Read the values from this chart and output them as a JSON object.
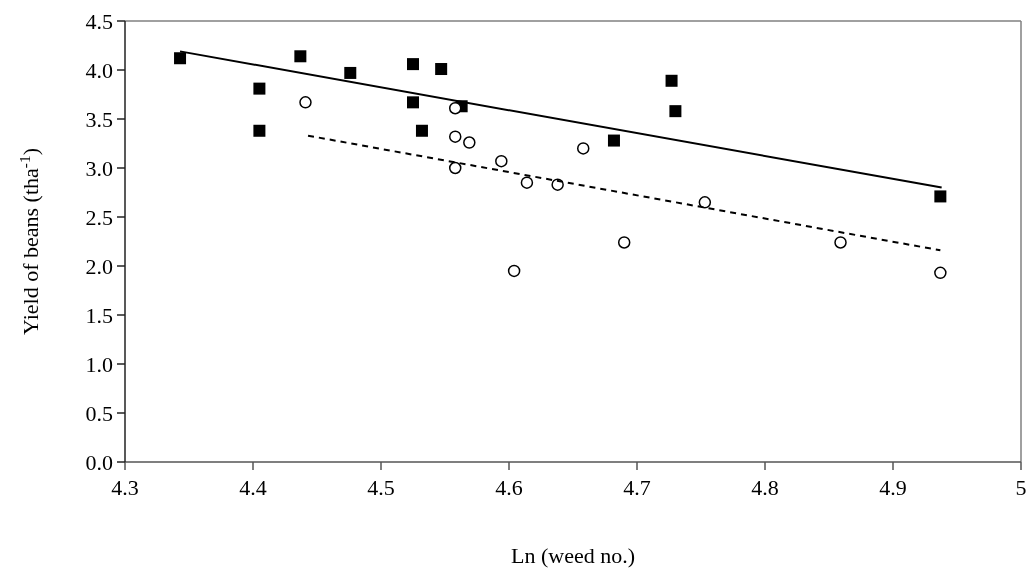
{
  "chart_data": {
    "type": "scatter",
    "xlabel": "Ln (weed no.)",
    "ylabel": "Yield of beans (tha$^{-1}$)",
    "xlim": [
      4.3,
      5
    ],
    "xticks": [
      4.3,
      4.4,
      4.5,
      4.6,
      4.7,
      4.8,
      4.9,
      5
    ],
    "ylim": [
      0,
      4.5
    ],
    "yticks": [
      {
        "value": 0,
        "label": "0.0"
      },
      0.5,
      {
        "value": 1,
        "label": "1.0"
      },
      1.5,
      {
        "value": 2,
        "label": "2.0"
      },
      2.5,
      {
        "value": 3,
        "label": "3.0"
      },
      3.5,
      {
        "value": 4,
        "label": "4.0"
      },
      4.5
    ],
    "grid": false,
    "series": [
      {
        "marker": "square",
        "color": "#000000",
        "x": [
          4.343,
          4.405,
          4.405,
          4.437,
          4.476,
          4.525,
          4.525,
          4.547,
          4.532,
          4.563,
          4.682,
          4.727,
          4.73,
          4.937
        ],
        "values": [
          4.12,
          3.81,
          3.38,
          4.14,
          3.97,
          4.06,
          3.67,
          4.01,
          3.38,
          3.63,
          3.28,
          3.89,
          3.58,
          2.71
        ]
      },
      {
        "marker": "circle",
        "color": "#000000",
        "x": [
          4.441,
          4.558,
          4.558,
          4.569,
          4.558,
          4.594,
          4.614,
          4.638,
          4.604,
          4.658,
          4.753,
          4.69,
          4.859,
          4.937
        ],
        "values": [
          3.67,
          3.61,
          3.32,
          3.26,
          3.0,
          3.07,
          2.85,
          2.83,
          1.95,
          3.2,
          2.65,
          2.24,
          2.24,
          1.93
        ]
      },
      {
        "type": "line",
        "line_style": "solid",
        "color": "#000000",
        "x": [
          4.343,
          4.938
        ],
        "values": [
          4.19,
          2.8
        ]
      },
      {
        "type": "line",
        "line_style": "dashed",
        "color": "#000000",
        "x": [
          4.443,
          4.937
        ],
        "values": [
          3.33,
          2.16
        ]
      }
    ]
  }
}
